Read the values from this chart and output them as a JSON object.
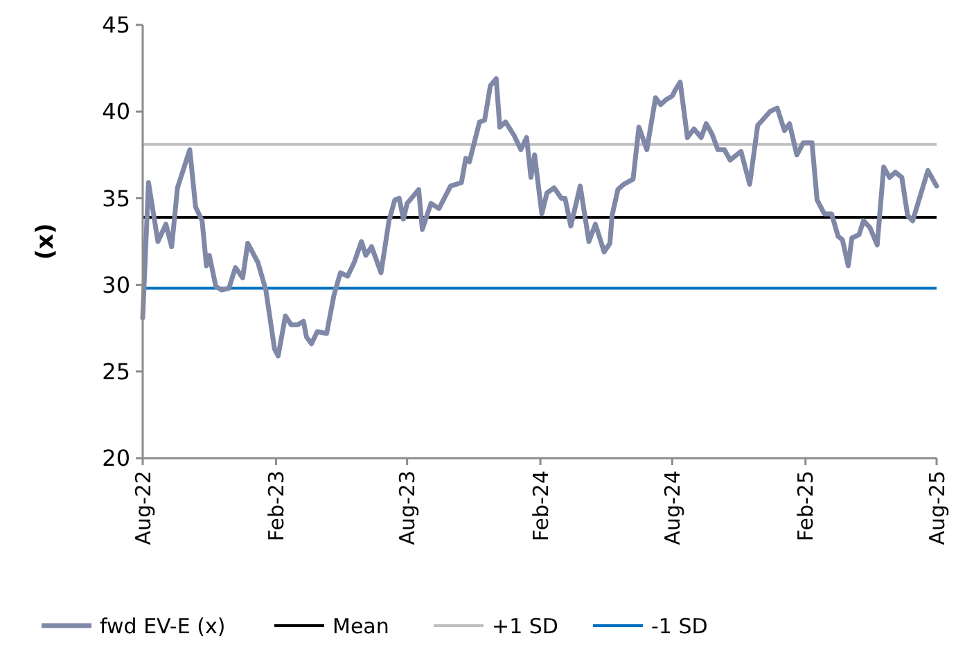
{
  "chart_data": {
    "type": "line",
    "ylabel": "(x)",
    "x": [
      "2022-08-01",
      "2022-08-09",
      "2022-08-22",
      "2022-09-02",
      "2022-09-10",
      "2022-09-18",
      "2022-10-05",
      "2022-10-13",
      "2022-10-22",
      "2022-10-28",
      "2022-11-01",
      "2022-11-10",
      "2022-11-18",
      "2022-11-28",
      "2022-12-07",
      "2022-12-17",
      "2022-12-24",
      "2023-01-07",
      "2023-01-18",
      "2023-01-30",
      "2023-02-04",
      "2023-02-14",
      "2023-02-22",
      "2023-03-03",
      "2023-03-11",
      "2023-03-15",
      "2023-03-22",
      "2023-03-30",
      "2023-04-12",
      "2023-04-22",
      "2023-05-01",
      "2023-05-11",
      "2023-05-20",
      "2023-05-30",
      "2023-06-05",
      "2023-06-13",
      "2023-06-26",
      "2023-07-07",
      "2023-07-15",
      "2023-07-21",
      "2023-07-27",
      "2023-08-01",
      "2023-08-17",
      "2023-08-22",
      "2023-09-03",
      "2023-09-14",
      "2023-09-30",
      "2023-10-15",
      "2023-10-21",
      "2023-10-26",
      "2023-11-09",
      "2023-11-16",
      "2023-11-24",
      "2023-12-02",
      "2023-12-07",
      "2023-12-15",
      "2023-12-27",
      "2024-01-05",
      "2024-01-13",
      "2024-01-19",
      "2024-01-24",
      "2024-02-03",
      "2024-02-10",
      "2024-02-20",
      "2024-03-01",
      "2024-03-06",
      "2024-03-14",
      "2024-03-27",
      "2024-04-08",
      "2024-04-17",
      "2024-04-29",
      "2024-05-07",
      "2024-05-10",
      "2024-05-18",
      "2024-05-26",
      "2024-06-08",
      "2024-06-16",
      "2024-06-27",
      "2024-07-09",
      "2024-07-16",
      "2024-07-24",
      "2024-08-01",
      "2024-08-06",
      "2024-08-12",
      "2024-08-22",
      "2024-08-31",
      "2024-09-10",
      "2024-09-17",
      "2024-09-25",
      "2024-10-03",
      "2024-10-12",
      "2024-10-20",
      "2024-11-04",
      "2024-11-16",
      "2024-11-27",
      "2024-12-14",
      "2024-12-24",
      "2025-01-03",
      "2025-01-10",
      "2025-01-20",
      "2025-01-29",
      "2025-02-10",
      "2025-02-17",
      "2025-02-27",
      "2025-03-09",
      "2025-03-18",
      "2025-03-24",
      "2025-04-01",
      "2025-04-06",
      "2025-04-16",
      "2025-04-22",
      "2025-05-01",
      "2025-05-11",
      "2025-05-20",
      "2025-05-28",
      "2025-06-05",
      "2025-06-14",
      "2025-06-22",
      "2025-06-29",
      "2025-07-20",
      "2025-08-01"
    ],
    "series": [
      {
        "name": "fwd EV-E (x)",
        "color": "#8088a8",
        "values": [
          28.1,
          35.9,
          32.5,
          33.5,
          32.2,
          35.6,
          37.8,
          34.5,
          33.7,
          31.1,
          31.7,
          29.9,
          29.7,
          29.8,
          31.0,
          30.4,
          32.4,
          31.3,
          29.7,
          26.3,
          25.9,
          28.2,
          27.7,
          27.7,
          27.9,
          27.0,
          26.6,
          27.3,
          27.2,
          29.4,
          30.7,
          30.5,
          31.3,
          32.5,
          31.7,
          32.2,
          30.7,
          33.7,
          34.9,
          35.0,
          33.8,
          34.7,
          35.5,
          33.2,
          34.7,
          34.4,
          35.7,
          35.9,
          37.3,
          37.1,
          39.4,
          39.5,
          41.5,
          41.9,
          39.1,
          39.4,
          38.6,
          37.8,
          38.5,
          36.2,
          37.5,
          34.1,
          35.3,
          35.6,
          35.0,
          35.0,
          33.4,
          35.7,
          32.5,
          33.5,
          31.9,
          32.4,
          34.0,
          35.5,
          35.8,
          36.1,
          39.1,
          37.8,
          40.8,
          40.4,
          40.7,
          40.9,
          41.3,
          41.7,
          38.5,
          39.0,
          38.5,
          39.3,
          38.7,
          37.8,
          37.8,
          37.2,
          37.7,
          35.8,
          39.2,
          40.0,
          40.2,
          38.9,
          39.3,
          37.5,
          38.2,
          38.2,
          34.9,
          34.1,
          34.1,
          32.8,
          32.6,
          31.1,
          32.7,
          32.9,
          33.7,
          33.3,
          32.3,
          36.8,
          36.2,
          36.5,
          36.2,
          34.0,
          33.7,
          36.6,
          35.7
        ]
      }
    ],
    "ref_lines": [
      {
        "axis": "y",
        "value": 33.9,
        "label": "Mean",
        "color": "#000000"
      },
      {
        "axis": "y",
        "value": 38.1,
        "label": "+1 SD",
        "color": "#bfbfbf"
      },
      {
        "axis": "y",
        "value": 29.8,
        "label": "-1 SD",
        "color": "#0070c0"
      }
    ],
    "xlim": [
      "2022-08-01",
      "2025-08-01"
    ],
    "xticks": [
      {
        "value": "2022-08-01",
        "label": "Aug-22"
      },
      {
        "value": "2023-02-01",
        "label": "Feb-23"
      },
      {
        "value": "2023-08-01",
        "label": "Aug-23"
      },
      {
        "value": "2024-02-01",
        "label": "Feb-24"
      },
      {
        "value": "2024-08-01",
        "label": "Aug-24"
      },
      {
        "value": "2025-02-01",
        "label": "Feb-25"
      },
      {
        "value": "2025-08-01",
        "label": "Aug-25"
      }
    ],
    "ylim": [
      20,
      45
    ],
    "yticks": [
      20,
      25,
      30,
      35,
      40,
      45
    ],
    "grid": false,
    "legend": "bottom",
    "marker": "none",
    "line_style": "solid"
  }
}
